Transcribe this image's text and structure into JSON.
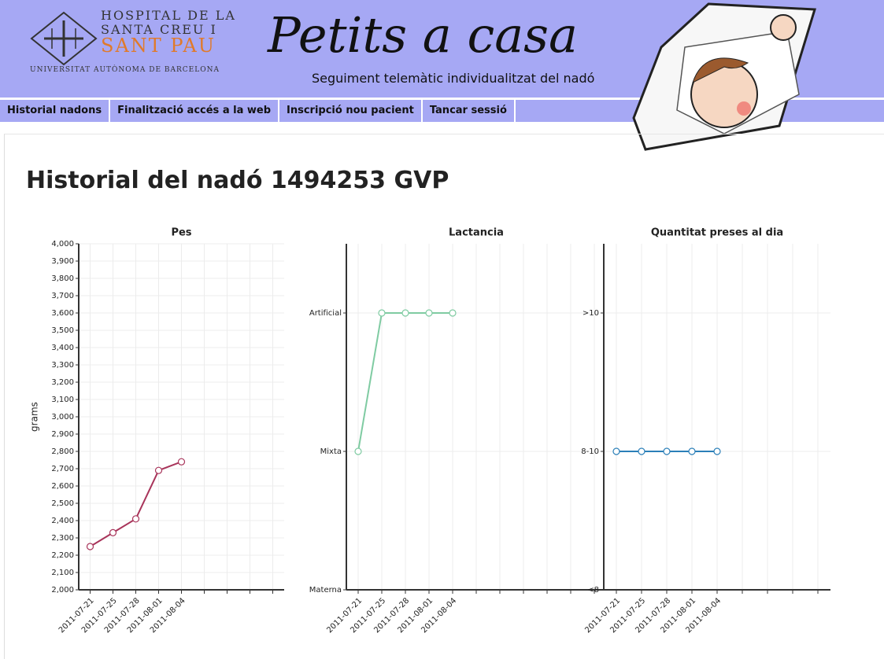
{
  "header": {
    "hospital_lines": [
      "HOSPITAL DE LA",
      "SANTA CREU I",
      "SANT PAU"
    ],
    "university": "UNIVERSITAT AUTÒNOMA DE BARCELONA",
    "app_title": "Petits a casa",
    "subtitle": "Seguiment telemàtic individualitzat del nadó"
  },
  "nav": [
    "Historial nadons",
    "Finalització accés a la web",
    "Inscripció nou pacient",
    "Tancar sessió"
  ],
  "page_title": "Historial del nadó 1494253 GVP",
  "chart_data": [
    {
      "type": "line",
      "title": "Pes",
      "y_label": "grams",
      "color": "#a8345a",
      "grid": true,
      "categories": [
        "2011-07-21",
        "2011-07-25",
        "2011-07-28",
        "2011-08-01",
        "2011-08-04",
        null,
        null,
        null,
        null
      ],
      "values": [
        2250,
        2330,
        2410,
        2690,
        2740,
        null,
        null,
        null,
        null
      ],
      "ylim": [
        2000,
        4000
      ],
      "yticks": [
        {
          "value": 2000,
          "label": "2,000"
        },
        {
          "value": 2100,
          "label": "2,100"
        },
        {
          "value": 2200,
          "label": "2,200"
        },
        {
          "value": 2300,
          "label": "2,300"
        },
        {
          "value": 2400,
          "label": "2,400"
        },
        {
          "value": 2500,
          "label": "2,500"
        },
        {
          "value": 2600,
          "label": "2,600"
        },
        {
          "value": 2700,
          "label": "2,700"
        },
        {
          "value": 2800,
          "label": "2,800"
        },
        {
          "value": 2900,
          "label": "2,900"
        },
        {
          "value": 3000,
          "label": "3,000"
        },
        {
          "value": 3100,
          "label": "3,100"
        },
        {
          "value": 3200,
          "label": "3,200"
        },
        {
          "value": 3300,
          "label": "3,300"
        },
        {
          "value": 3400,
          "label": "3,400"
        },
        {
          "value": 3500,
          "label": "3,500"
        },
        {
          "value": 3600,
          "label": "3,600"
        },
        {
          "value": 3700,
          "label": "3,700"
        },
        {
          "value": 3800,
          "label": "3,800"
        },
        {
          "value": 3900,
          "label": "3,900"
        },
        {
          "value": 4000,
          "label": "4,000"
        }
      ]
    },
    {
      "type": "line",
      "title": "Lactancia",
      "color": "#7fcba2",
      "grid": true,
      "categories": [
        "2011-07-21",
        "2011-07-25",
        "2011-07-28",
        "2011-08-01",
        "2011-08-04",
        null,
        null,
        null,
        null,
        null,
        null
      ],
      "values": [
        1,
        2,
        2,
        2,
        2,
        null,
        null,
        null,
        null,
        null,
        null
      ],
      "ylim": [
        0,
        2.5
      ],
      "yticks": [
        {
          "value": 0,
          "label": "Materna"
        },
        {
          "value": 1,
          "label": "Mixta"
        },
        {
          "value": 2,
          "label": "Artificial"
        }
      ]
    },
    {
      "type": "line",
      "title": "Quantitat preses al dia",
      "color": "#2b7fb8",
      "grid": true,
      "categories": [
        "2011-07-21",
        "2011-07-25",
        "2011-07-28",
        "2011-08-01",
        "2011-08-04",
        null,
        null,
        null,
        null
      ],
      "values": [
        1,
        1,
        1,
        1,
        1,
        null,
        null,
        null,
        null
      ],
      "ylim": [
        0,
        2.5
      ],
      "yticks": [
        {
          "value": 0,
          "label": "<8"
        },
        {
          "value": 1,
          "label": "8-10"
        },
        {
          "value": 2,
          "label": ">10"
        }
      ]
    }
  ]
}
